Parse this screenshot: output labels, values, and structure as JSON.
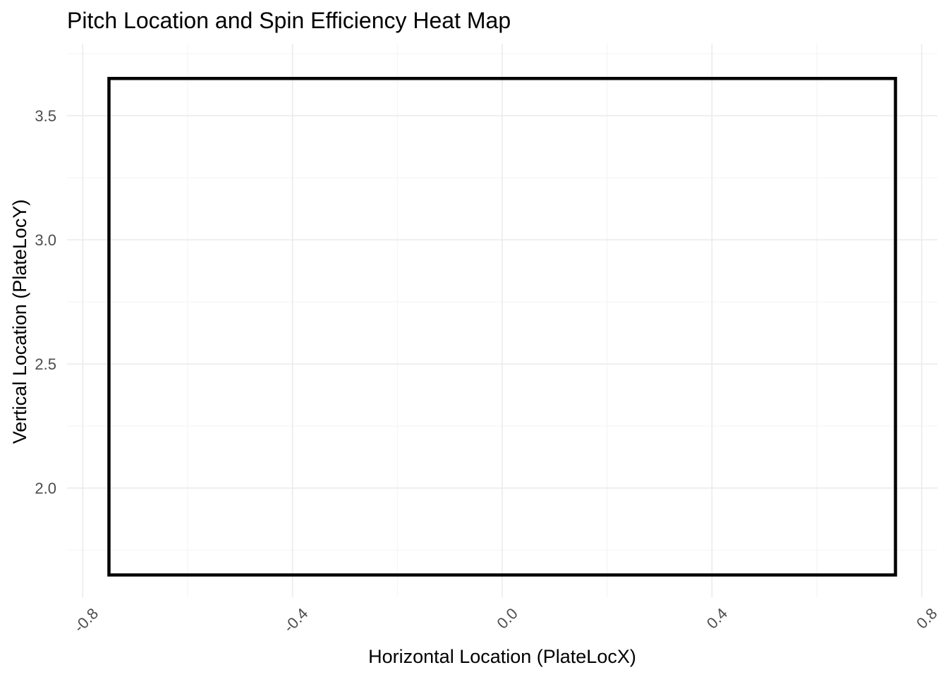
{
  "chart_data": {
    "type": "heatmap",
    "title": "Pitch Location and Spin Efficiency Heat Map",
    "xlabel": "Horizontal Location (PlateLocX)",
    "ylabel": "Vertical Location (PlateLocY)",
    "xlim": [
      -0.83,
      0.83
    ],
    "ylim": [
      1.56,
      3.79
    ],
    "x_ticks": [
      -0.8,
      -0.4,
      0.0,
      0.4,
      0.8
    ],
    "x_tick_labels": [
      "-0.8",
      "-0.4",
      "0.0",
      "0.4",
      "0.8"
    ],
    "x_minor_ticks": [
      -0.6,
      -0.2,
      0.2,
      0.6
    ],
    "y_ticks": [
      2.0,
      2.5,
      3.0,
      3.5
    ],
    "y_tick_labels": [
      "2.0",
      "2.5",
      "3.0",
      "3.5"
    ],
    "y_minor_ticks": [
      1.75,
      2.25,
      2.75,
      3.25,
      3.75
    ],
    "grid": true,
    "x_tick_label_rotation_deg": -45,
    "strike_zone": {
      "x_min": -0.75,
      "x_max": 0.75,
      "y_min": 1.65,
      "y_max": 3.65,
      "color": "#000000"
    },
    "cells": []
  }
}
